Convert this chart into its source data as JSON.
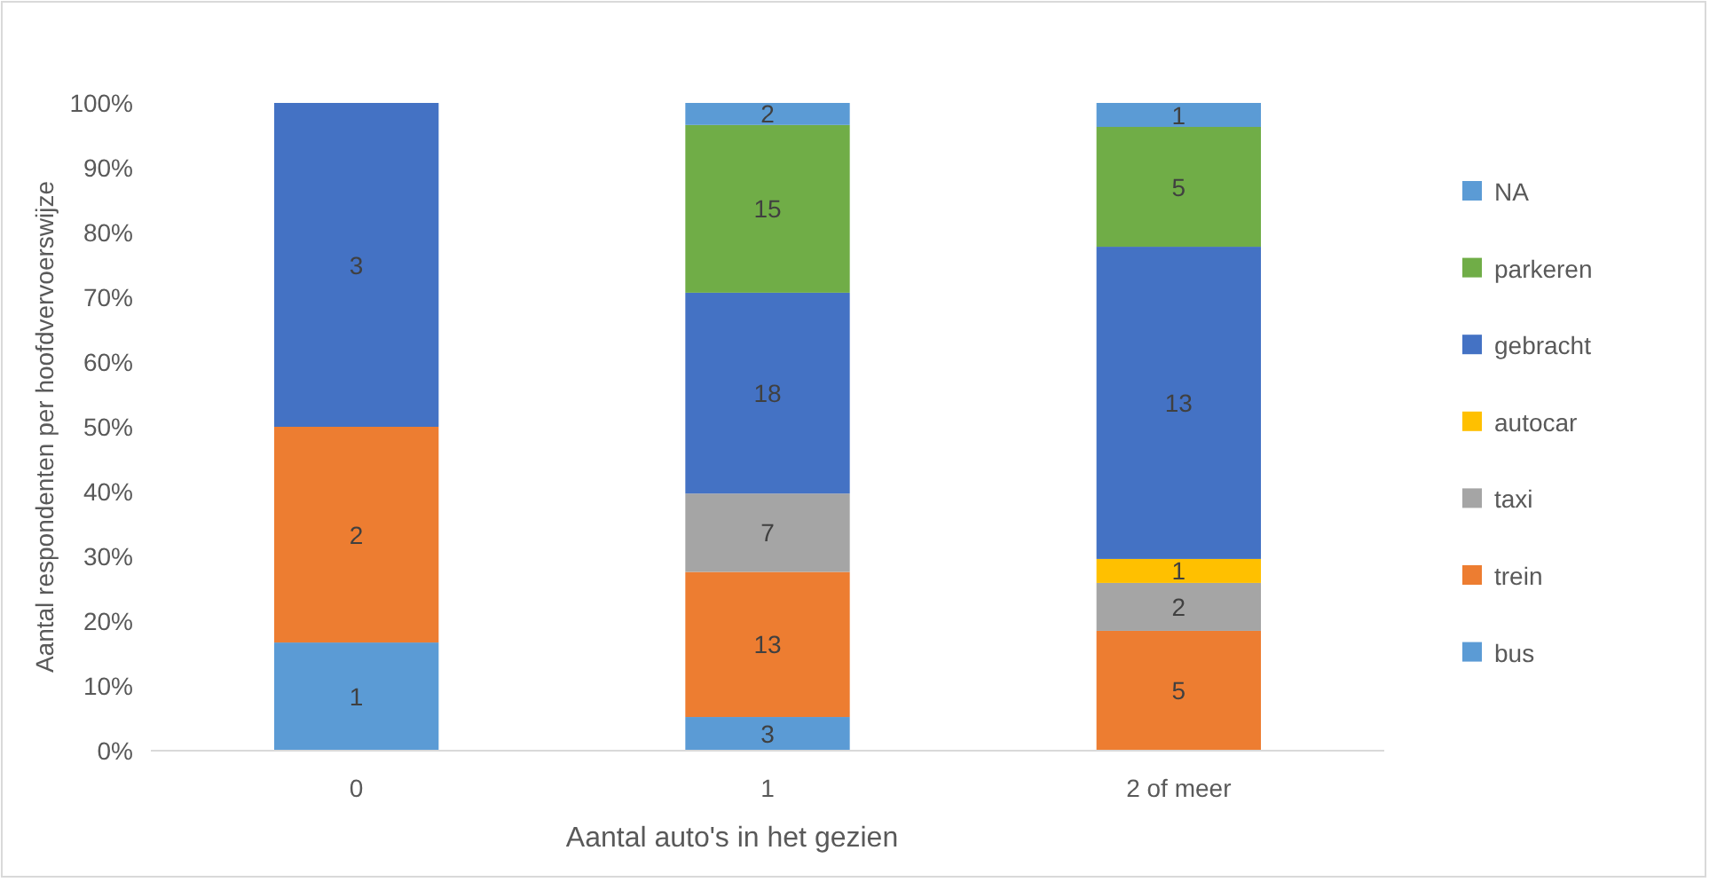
{
  "chart_data": {
    "type": "bar",
    "stacked": true,
    "xlabel": "Aantal auto's in het gezien",
    "ylabel": "Aantal respondenten per hoofdvervoerswijze",
    "categories": [
      "0",
      "1",
      "2 of meer"
    ],
    "ylim": [
      0,
      100
    ],
    "yticks": [
      {
        "value": 0,
        "label": "0%"
      },
      {
        "value": 10,
        "label": "10%"
      },
      {
        "value": 20,
        "label": "20%"
      },
      {
        "value": 30,
        "label": "30%"
      },
      {
        "value": 40,
        "label": "40%"
      },
      {
        "value": 50,
        "label": "50%"
      },
      {
        "value": 60,
        "label": "60%"
      },
      {
        "value": 70,
        "label": "70%"
      },
      {
        "value": 80,
        "label": "80%"
      },
      {
        "value": 90,
        "label": "90%"
      },
      {
        "value": 100,
        "label": "100%"
      }
    ],
    "grid": false,
    "legend": "right",
    "series": [
      {
        "name": "bus",
        "color": "#5b9bd5",
        "values": [
          16.7,
          5.2,
          0
        ]
      },
      {
        "name": "trein",
        "color": "#ed7d31",
        "values": [
          33.3,
          22.4,
          18.5
        ]
      },
      {
        "name": "taxi",
        "color": "#a5a5a5",
        "values": [
          0,
          12.1,
          7.4
        ]
      },
      {
        "name": "autocar",
        "color": "#ffc000",
        "values": [
          0,
          0,
          3.7
        ]
      },
      {
        "name": "gebracht",
        "color": "#4472c4",
        "values": [
          50.0,
          31.0,
          48.2
        ]
      },
      {
        "name": "parkeren",
        "color": "#70ad47",
        "values": [
          0,
          25.9,
          18.5
        ]
      },
      {
        "name": "NA",
        "color": "#5b9bd5",
        "values": [
          0,
          3.4,
          3.7
        ]
      }
    ],
    "annotations": [
      "1",
      "2",
      "3",
      "3",
      "13",
      "7",
      "18",
      "15",
      "2",
      "5",
      "2",
      "1",
      "13",
      "5",
      "1"
    ]
  }
}
